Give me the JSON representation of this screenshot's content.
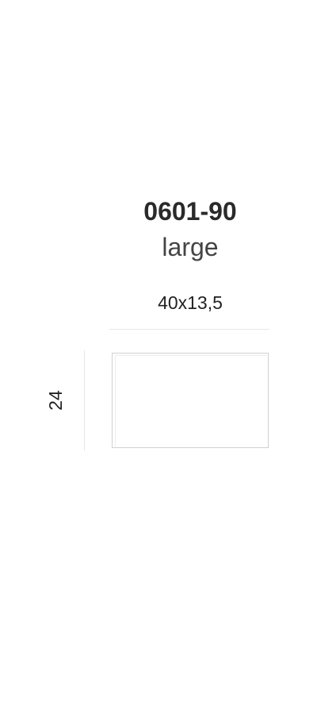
{
  "product": {
    "code": "0601-90",
    "size_name": "large"
  },
  "dimensions": {
    "width_label": "40x13,5",
    "height_label": "24"
  }
}
